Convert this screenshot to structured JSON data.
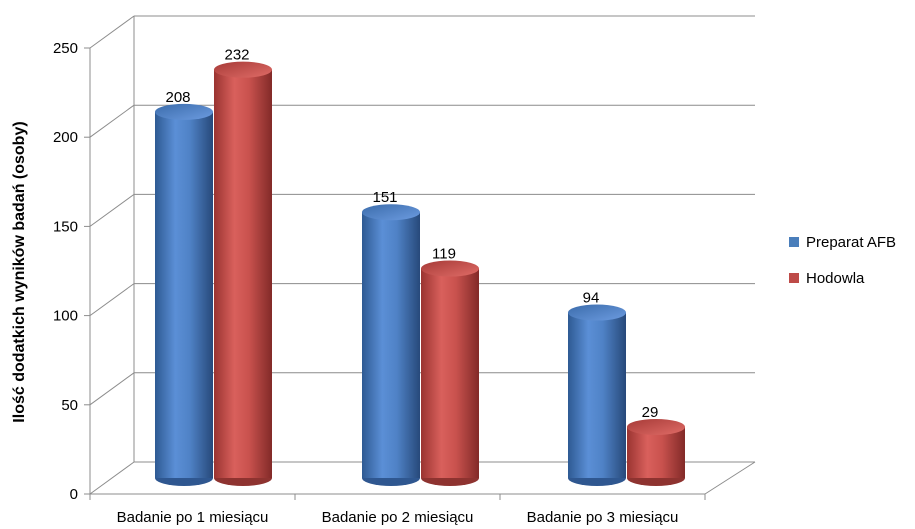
{
  "chart_data": {
    "type": "bar",
    "ylabel": "Ilość dodatkich wyników badań (osoby)",
    "categories": [
      "Badanie po 1 miesiącu",
      "Badanie po 2 miesiącu",
      "Badanie po 3 miesiącu"
    ],
    "series": [
      {
        "name": "Preparat AFB",
        "values": [
          208,
          151,
          94
        ],
        "color": "#4a7ebb"
      },
      {
        "name": "Hodowla",
        "values": [
          232,
          119,
          29
        ],
        "color": "#be4b48"
      }
    ],
    "yticks": [
      "0",
      "50",
      "100",
      "150",
      "200",
      "250"
    ],
    "ylim": [
      0,
      250
    ],
    "grid": true,
    "legend_position": "right",
    "style": "3d-cylinder"
  }
}
